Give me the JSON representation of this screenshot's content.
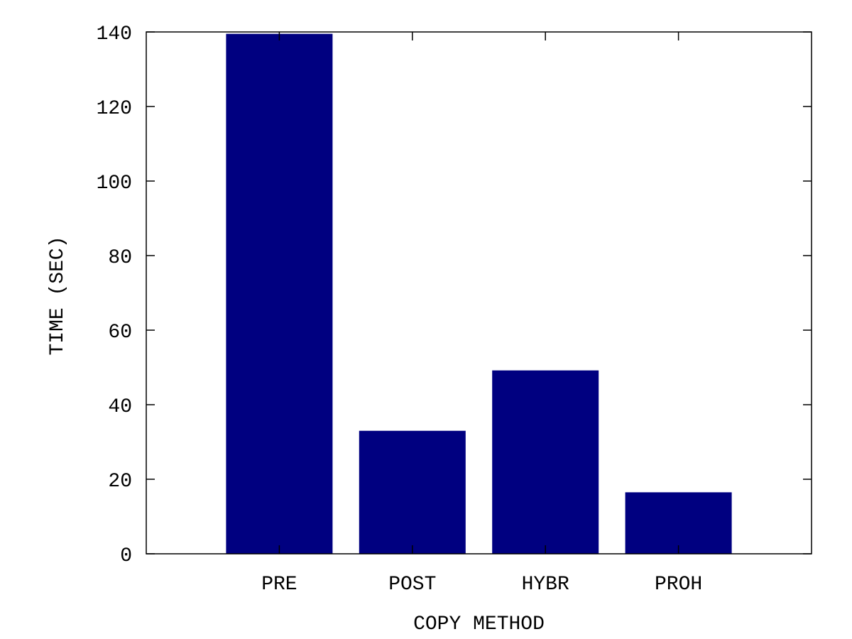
{
  "chart_data": {
    "type": "bar",
    "categories": [
      "PRE",
      "POST",
      "HYBR",
      "PROH"
    ],
    "values": [
      139.5,
      33,
      49.2,
      16.5
    ],
    "xlabel": "COPY METHOD",
    "ylabel": "TIME (SEC)",
    "ylim": [
      0,
      140
    ],
    "yticks": [
      0,
      20,
      40,
      60,
      80,
      100,
      120,
      140
    ],
    "grid": false,
    "bar_color": "#000080",
    "axis_color": "#000000"
  }
}
